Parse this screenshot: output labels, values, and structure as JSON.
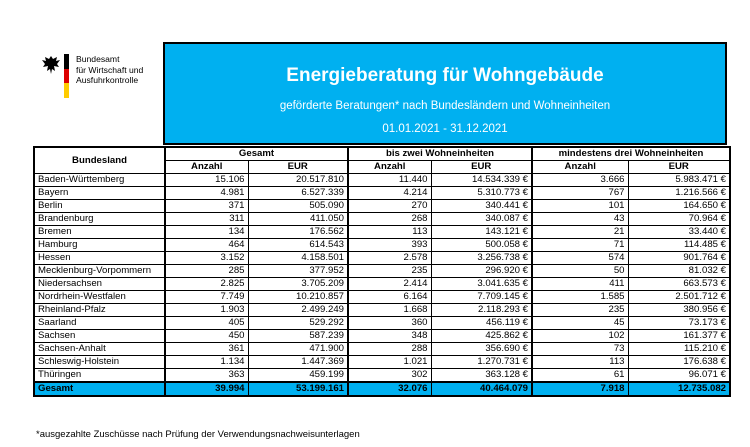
{
  "logo": {
    "line1": "Bundesamt",
    "line2": "für Wirtschaft und",
    "line3": "Ausfuhrkontrolle",
    "flag_colors": [
      "#000000",
      "#dd0000",
      "#ffcc00"
    ]
  },
  "banner": {
    "title": "Energieberatung für Wohngebäude",
    "subtitle": "geförderte Beratungen* nach Bundesländern und Wohneinheiten",
    "period": "01.01.2021 - 31.12.2021",
    "color": "#00b0f0"
  },
  "table": {
    "col_land": "Bundesland",
    "group_gesamt": "Gesamt",
    "group_zwei": "bis zwei Wohneinheiten",
    "group_drei": "mindestens drei Wohneinheiten",
    "sub_anzahl": "Anzahl",
    "sub_eur": "EUR",
    "rows": [
      {
        "land": "Baden-Württemberg",
        "g_anz": "15.106",
        "g_eur": "20.517.810",
        "z_anz": "11.440",
        "z_eur": "14.534.339 €",
        "d_anz": "3.666",
        "d_eur": "5.983.471 €"
      },
      {
        "land": "Bayern",
        "g_anz": "4.981",
        "g_eur": "6.527.339",
        "z_anz": "4.214",
        "z_eur": "5.310.773 €",
        "d_anz": "767",
        "d_eur": "1.216.566 €"
      },
      {
        "land": "Berlin",
        "g_anz": "371",
        "g_eur": "505.090",
        "z_anz": "270",
        "z_eur": "340.441 €",
        "d_anz": "101",
        "d_eur": "164.650 €"
      },
      {
        "land": "Brandenburg",
        "g_anz": "311",
        "g_eur": "411.050",
        "z_anz": "268",
        "z_eur": "340.087 €",
        "d_anz": "43",
        "d_eur": "70.964 €"
      },
      {
        "land": "Bremen",
        "g_anz": "134",
        "g_eur": "176.562",
        "z_anz": "113",
        "z_eur": "143.121 €",
        "d_anz": "21",
        "d_eur": "33.440 €"
      },
      {
        "land": "Hamburg",
        "g_anz": "464",
        "g_eur": "614.543",
        "z_anz": "393",
        "z_eur": "500.058 €",
        "d_anz": "71",
        "d_eur": "114.485 €"
      },
      {
        "land": "Hessen",
        "g_anz": "3.152",
        "g_eur": "4.158.501",
        "z_anz": "2.578",
        "z_eur": "3.256.738 €",
        "d_anz": "574",
        "d_eur": "901.764 €"
      },
      {
        "land": "Mecklenburg-Vorpommern",
        "g_anz": "285",
        "g_eur": "377.952",
        "z_anz": "235",
        "z_eur": "296.920 €",
        "d_anz": "50",
        "d_eur": "81.032 €"
      },
      {
        "land": "Niedersachsen",
        "g_anz": "2.825",
        "g_eur": "3.705.209",
        "z_anz": "2.414",
        "z_eur": "3.041.635 €",
        "d_anz": "411",
        "d_eur": "663.573 €"
      },
      {
        "land": "Nordrhein-Westfalen",
        "g_anz": "7.749",
        "g_eur": "10.210.857",
        "z_anz": "6.164",
        "z_eur": "7.709.145 €",
        "d_anz": "1.585",
        "d_eur": "2.501.712 €"
      },
      {
        "land": "Rheinland-Pfalz",
        "g_anz": "1.903",
        "g_eur": "2.499.249",
        "z_anz": "1.668",
        "z_eur": "2.118.293 €",
        "d_anz": "235",
        "d_eur": "380.956 €"
      },
      {
        "land": "Saarland",
        "g_anz": "405",
        "g_eur": "529.292",
        "z_anz": "360",
        "z_eur": "456.119 €",
        "d_anz": "45",
        "d_eur": "73.173 €"
      },
      {
        "land": "Sachsen",
        "g_anz": "450",
        "g_eur": "587.239",
        "z_anz": "348",
        "z_eur": "425.862 €",
        "d_anz": "102",
        "d_eur": "161.377 €"
      },
      {
        "land": "Sachsen-Anhalt",
        "g_anz": "361",
        "g_eur": "471.900",
        "z_anz": "288",
        "z_eur": "356.690 €",
        "d_anz": "73",
        "d_eur": "115.210 €"
      },
      {
        "land": "Schleswig-Holstein",
        "g_anz": "1.134",
        "g_eur": "1.447.369",
        "z_anz": "1.021",
        "z_eur": "1.270.731 €",
        "d_anz": "113",
        "d_eur": "176.638 €"
      },
      {
        "land": "Thüringen",
        "g_anz": "363",
        "g_eur": "459.199",
        "z_anz": "302",
        "z_eur": "363.128 €",
        "d_anz": "61",
        "d_eur": "96.071 €"
      }
    ],
    "total": {
      "land": "Gesamt",
      "g_anz": "39.994",
      "g_eur": "53.199.161",
      "z_anz": "32.076",
      "z_eur": "40.464.079",
      "d_anz": "7.918",
      "d_eur": "12.735.082"
    }
  },
  "footnote": "*ausgezahlte Zuschüsse nach Prüfung der Verwendungsnachweisunterlagen"
}
